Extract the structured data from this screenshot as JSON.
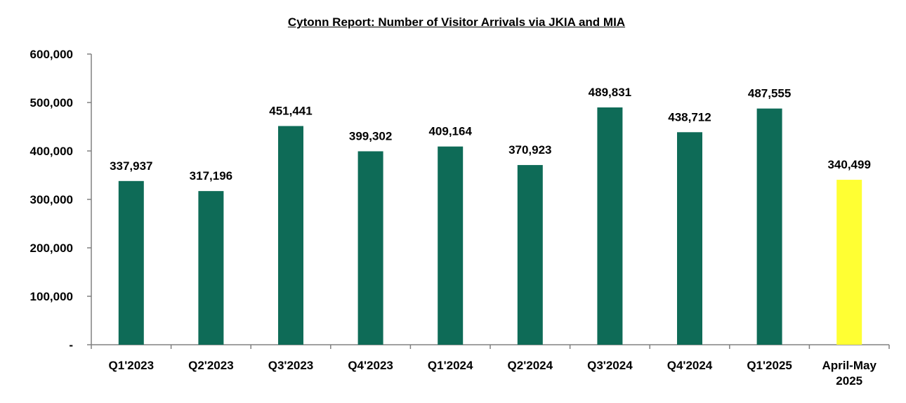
{
  "chart_data": {
    "type": "bar",
    "title": "Cytonn Report: Number of Visitor Arrivals via JKIA and MIA",
    "xlabel": "",
    "ylabel": "",
    "categories": [
      "Q1'2023",
      "Q2'2023",
      "Q3'2023",
      "Q4'2023",
      "Q1'2024",
      "Q2'2024",
      "Q3'2024",
      "Q4'2024",
      "Q1'2025",
      "April-May 2025"
    ],
    "values": [
      337937,
      317196,
      451441,
      399302,
      409164,
      370923,
      489831,
      438712,
      487555,
      340499
    ],
    "value_labels": [
      "337,937",
      "317,196",
      "451,441",
      "399,302",
      "409,164",
      "370,923",
      "489,831",
      "438,712",
      "487,555",
      "340,499"
    ],
    "bar_colors": [
      "#0e6b57",
      "#0e6b57",
      "#0e6b57",
      "#0e6b57",
      "#0e6b57",
      "#0e6b57",
      "#0e6b57",
      "#0e6b57",
      "#0e6b57",
      "#ffff33"
    ],
    "ylim": [
      0,
      600000
    ],
    "yticks": [
      0,
      100000,
      200000,
      300000,
      400000,
      500000,
      600000
    ],
    "ytick_labels": [
      "-",
      "100,000",
      "200,000",
      "300,000",
      "400,000",
      "500,000",
      "600,000"
    ],
    "grid": false,
    "legend": "none"
  }
}
